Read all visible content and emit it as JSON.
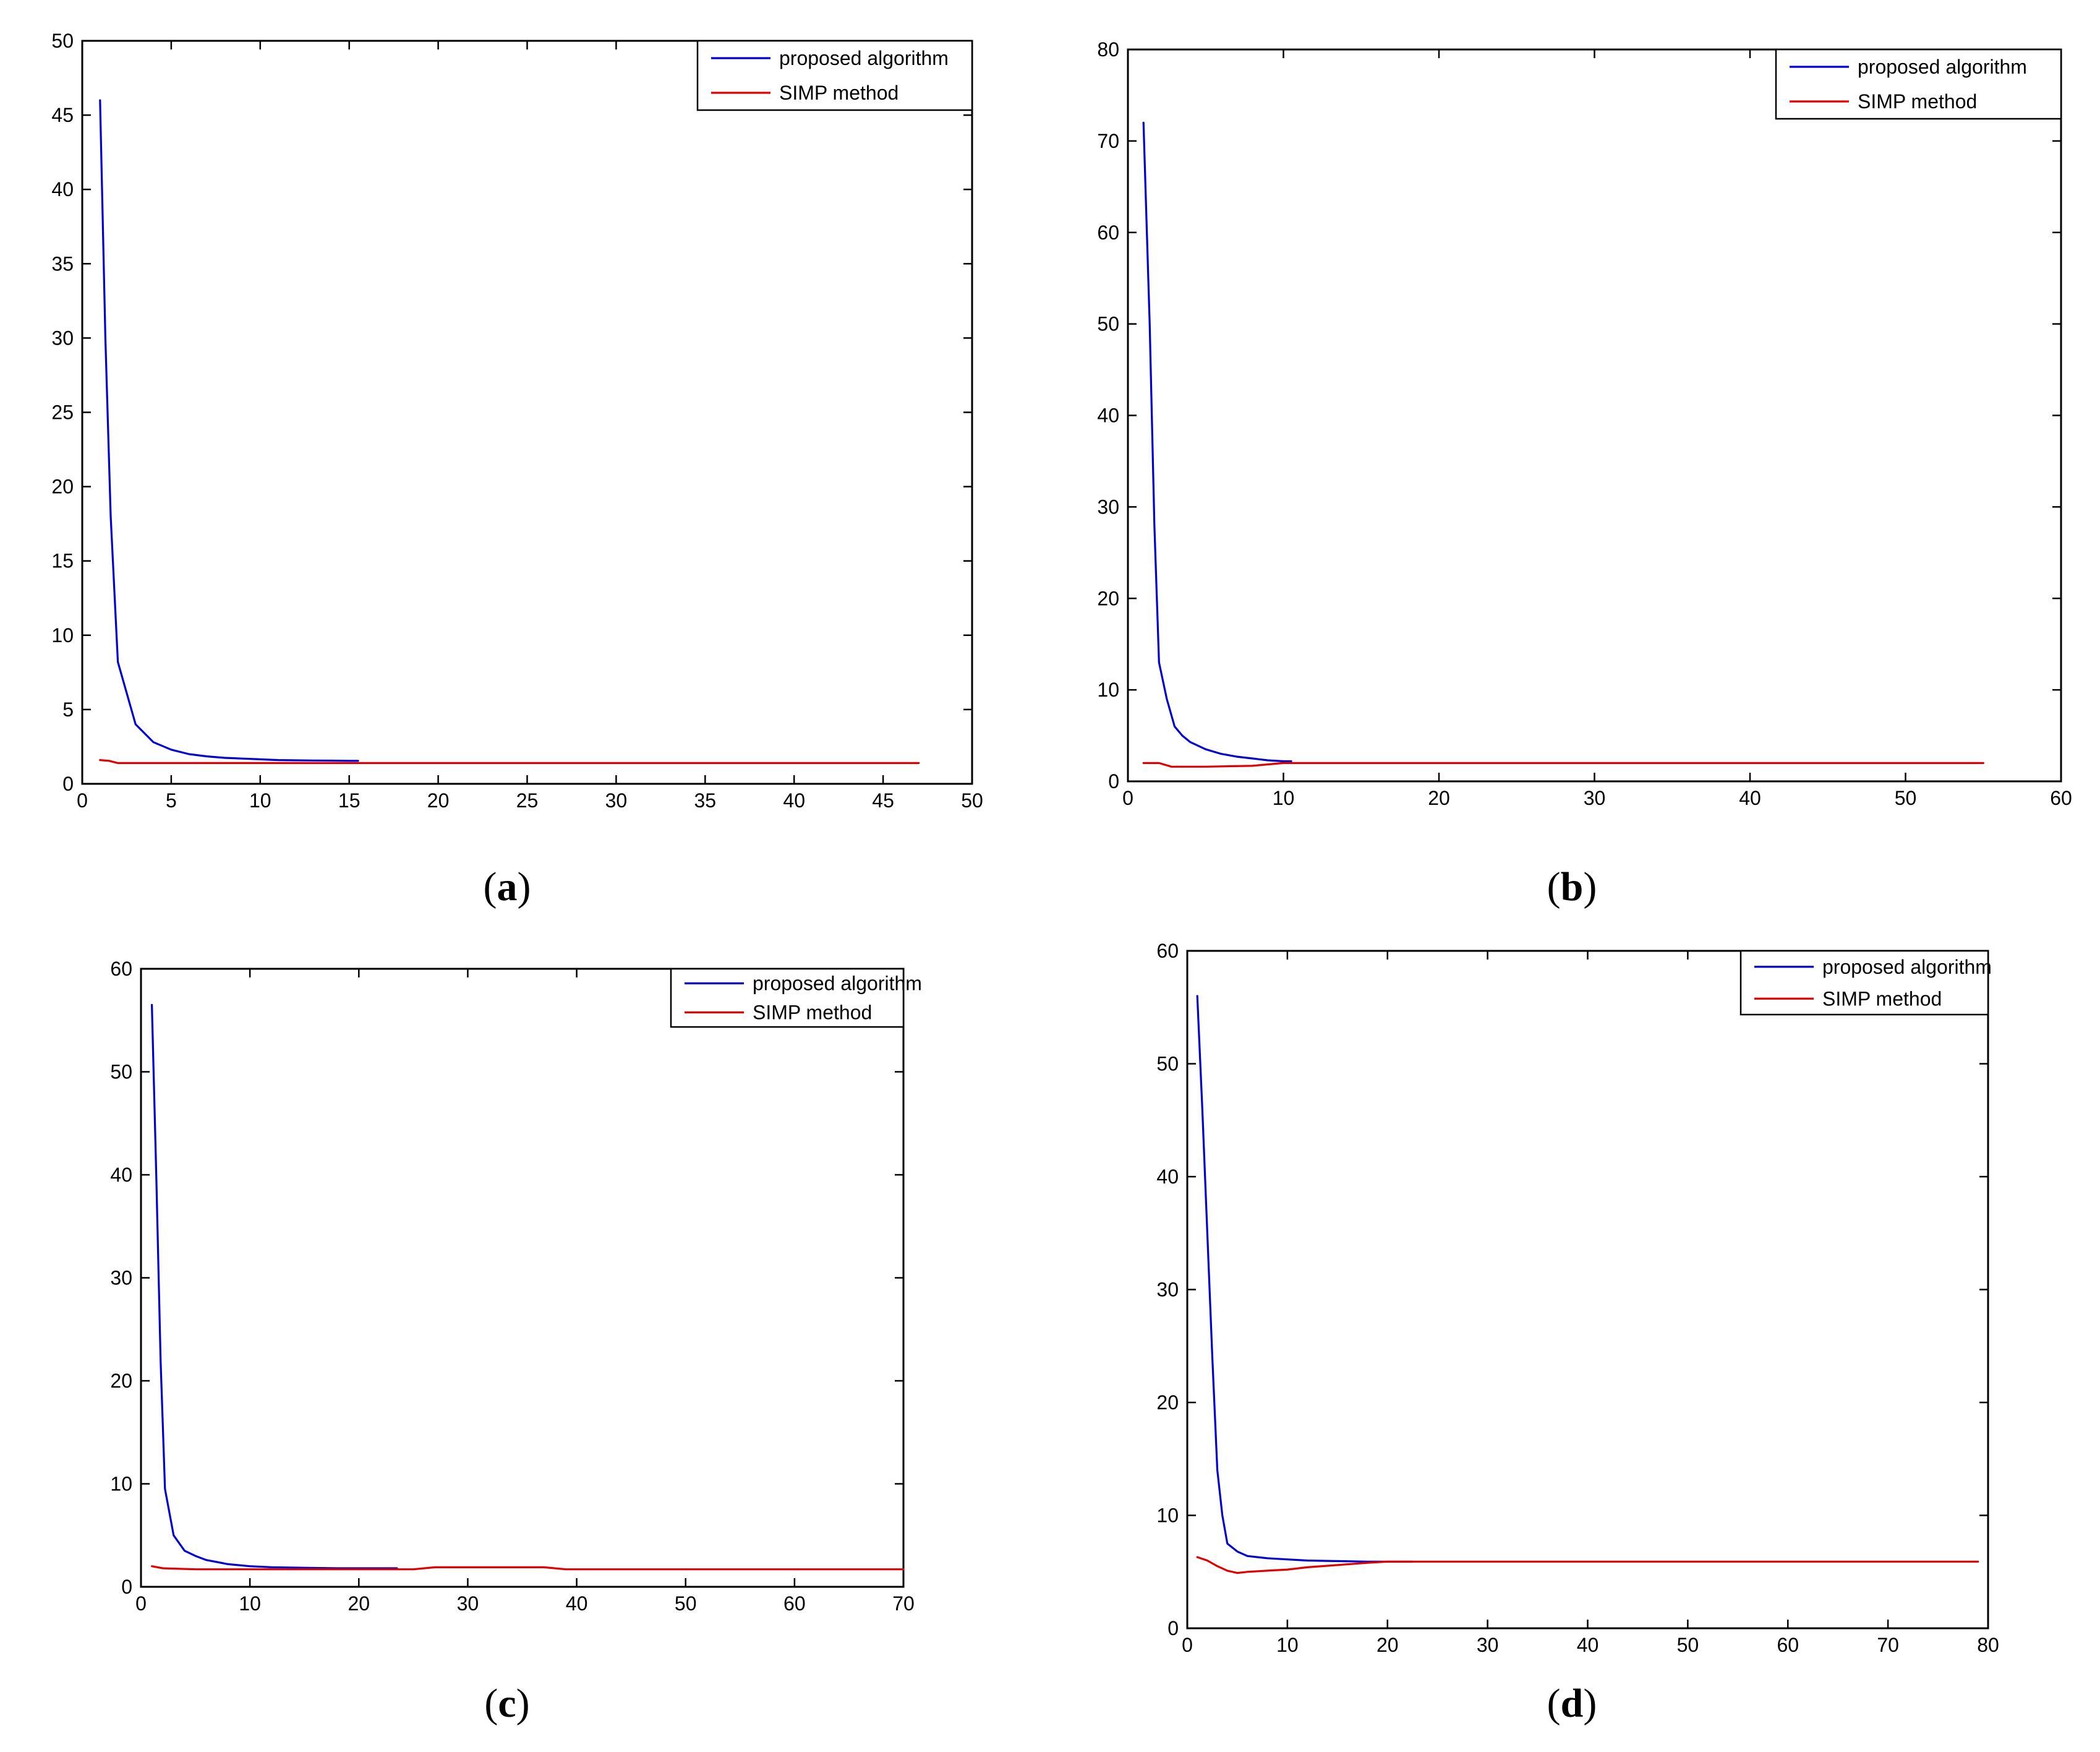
{
  "chart_data": [
    {
      "type": "line",
      "panel": "a",
      "caption_letter": "a",
      "xlim": [
        0,
        50
      ],
      "ylim": [
        0,
        50
      ],
      "xticks": [
        0,
        5,
        10,
        15,
        20,
        25,
        30,
        35,
        40,
        45,
        50
      ],
      "yticks": [
        0,
        5,
        10,
        15,
        20,
        25,
        30,
        35,
        40,
        45,
        50
      ],
      "grid": false,
      "legend_position": "top-right",
      "series": [
        {
          "name": "proposed algorithm",
          "color": "#0000d0",
          "x": [
            1,
            1.3,
            1.6,
            2,
            3,
            4,
            5,
            6,
            7,
            8,
            9,
            10,
            11,
            12,
            13,
            14,
            15,
            15.5
          ],
          "y": [
            46,
            30,
            18,
            8.2,
            4,
            2.8,
            2.3,
            2,
            1.85,
            1.75,
            1.7,
            1.65,
            1.6,
            1.58,
            1.57,
            1.56,
            1.55,
            1.55
          ]
        },
        {
          "name": "SIMP method",
          "color": "#e00000",
          "x": [
            1,
            1.5,
            2,
            3,
            5,
            10,
            15,
            20,
            30,
            40,
            47
          ],
          "y": [
            1.6,
            1.55,
            1.4,
            1.4,
            1.4,
            1.4,
            1.4,
            1.4,
            1.4,
            1.4,
            1.4
          ]
        }
      ]
    },
    {
      "type": "line",
      "panel": "b",
      "caption_letter": "b",
      "xlim": [
        0,
        60
      ],
      "ylim": [
        0,
        80
      ],
      "xticks": [
        0,
        10,
        20,
        30,
        40,
        50,
        60
      ],
      "yticks": [
        0,
        10,
        20,
        30,
        40,
        50,
        60,
        70,
        80
      ],
      "grid": false,
      "legend_position": "top-right",
      "series": [
        {
          "name": "proposed algorithm",
          "color": "#0000d0",
          "x": [
            1,
            1.4,
            1.7,
            2,
            2.5,
            3,
            3.5,
            4,
            5,
            6,
            7,
            8,
            9,
            10,
            10.5
          ],
          "y": [
            72,
            50,
            28,
            13,
            9,
            6,
            5,
            4.3,
            3.5,
            3,
            2.7,
            2.5,
            2.3,
            2.2,
            2.2
          ]
        },
        {
          "name": "SIMP method",
          "color": "#e00000",
          "x": [
            1,
            2,
            2.8,
            5,
            8,
            10,
            15,
            20,
            30,
            40,
            50,
            55
          ],
          "y": [
            2,
            2,
            1.6,
            1.6,
            1.7,
            2,
            2,
            2,
            2,
            2,
            2,
            2
          ]
        }
      ]
    },
    {
      "type": "line",
      "panel": "c",
      "caption_letter": "c",
      "xlim": [
        0,
        70
      ],
      "ylim": [
        0,
        60
      ],
      "xticks": [
        0,
        10,
        20,
        30,
        40,
        50,
        60,
        70
      ],
      "yticks": [
        0,
        10,
        20,
        30,
        40,
        50,
        60
      ],
      "grid": false,
      "legend_position": "top-right",
      "series": [
        {
          "name": "proposed algorithm",
          "color": "#0000d0",
          "x": [
            1,
            1.4,
            1.8,
            2.2,
            3,
            4,
            5,
            6,
            7,
            8,
            10,
            12,
            15,
            18,
            20,
            23.5
          ],
          "y": [
            56.5,
            40,
            22,
            9.5,
            5,
            3.5,
            3,
            2.6,
            2.4,
            2.2,
            2,
            1.9,
            1.85,
            1.8,
            1.8,
            1.8
          ]
        },
        {
          "name": "SIMP method",
          "color": "#e00000",
          "x": [
            1,
            2,
            5,
            10,
            20,
            25,
            27,
            30,
            37,
            39,
            50,
            60,
            70
          ],
          "y": [
            2,
            1.8,
            1.7,
            1.7,
            1.7,
            1.7,
            1.9,
            1.9,
            1.9,
            1.7,
            1.7,
            1.7,
            1.7
          ]
        }
      ]
    },
    {
      "type": "line",
      "panel": "d",
      "caption_letter": "d",
      "xlim": [
        0,
        80
      ],
      "ylim": [
        0,
        60
      ],
      "xticks": [
        0,
        10,
        20,
        30,
        40,
        50,
        60,
        70,
        80
      ],
      "yticks": [
        0,
        10,
        20,
        30,
        40,
        50,
        60
      ],
      "grid": false,
      "legend_position": "top-right",
      "series": [
        {
          "name": "proposed algorithm",
          "color": "#0000d0",
          "x": [
            1,
            1.5,
            2,
            2.5,
            3,
            3.5,
            4,
            5,
            6,
            7,
            8,
            10,
            12,
            15,
            18,
            20,
            22.5
          ],
          "y": [
            56,
            46,
            35,
            24,
            14,
            10,
            7.5,
            6.8,
            6.4,
            6.3,
            6.2,
            6.1,
            6,
            5.95,
            5.9,
            5.9,
            5.9
          ]
        },
        {
          "name": "SIMP method",
          "color": "#e00000",
          "x": [
            1,
            2,
            3,
            4,
            5,
            6,
            8,
            10,
            12,
            15,
            18,
            20,
            25,
            40,
            60,
            79
          ],
          "y": [
            6.3,
            6,
            5.5,
            5.1,
            4.9,
            5,
            5.1,
            5.2,
            5.4,
            5.6,
            5.8,
            5.9,
            5.9,
            5.9,
            5.9,
            5.9
          ]
        }
      ]
    }
  ]
}
